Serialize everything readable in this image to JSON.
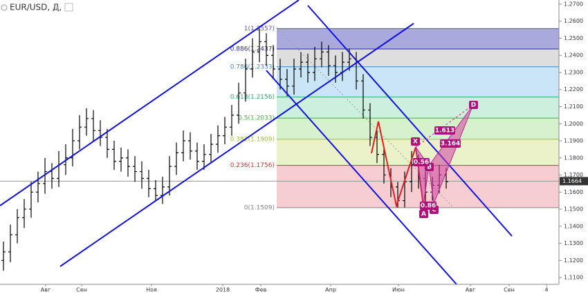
{
  "chart_data": {
    "type": "ohlc",
    "title": "EUR/USD, Д,",
    "x": [
      0,
      1,
      2,
      3,
      4,
      5,
      6,
      7,
      8,
      9,
      10,
      11,
      12,
      13,
      14,
      15,
      16,
      17,
      18,
      19,
      20,
      21,
      22,
      23,
      24,
      25,
      26,
      27,
      28,
      29,
      30,
      31,
      32,
      33,
      34,
      35,
      36,
      37,
      38,
      39,
      40,
      41,
      42,
      43,
      44,
      45,
      46,
      47,
      48,
      49,
      50,
      51,
      52,
      53,
      54,
      55,
      56,
      57,
      58,
      59,
      60,
      61,
      62,
      63,
      64
    ],
    "open": [
      1.12,
      1.125,
      1.135,
      1.145,
      1.15,
      1.16,
      1.165,
      1.172,
      1.168,
      1.176,
      1.18,
      1.19,
      1.198,
      1.203,
      1.196,
      1.192,
      1.185,
      1.178,
      1.18,
      1.175,
      1.172,
      1.168,
      1.162,
      1.158,
      1.163,
      1.175,
      1.183,
      1.19,
      1.184,
      1.178,
      1.182,
      1.188,
      1.193,
      1.198,
      1.205,
      1.218,
      1.232,
      1.242,
      1.248,
      1.24,
      1.232,
      1.226,
      1.222,
      1.232,
      1.236,
      1.23,
      1.238,
      1.242,
      1.234,
      1.23,
      1.236,
      1.238,
      1.225,
      1.208,
      1.192,
      1.182,
      1.17,
      1.163,
      1.155,
      1.166,
      1.176,
      1.168,
      1.16,
      1.164,
      1.17
    ],
    "high": [
      1.131,
      1.141,
      1.15,
      1.156,
      1.166,
      1.172,
      1.18,
      1.177,
      1.184,
      1.188,
      1.197,
      1.205,
      1.209,
      1.208,
      1.202,
      1.197,
      1.19,
      1.186,
      1.185,
      1.181,
      1.178,
      1.173,
      1.167,
      1.169,
      1.181,
      1.189,
      1.196,
      1.195,
      1.189,
      1.188,
      1.194,
      1.199,
      1.204,
      1.211,
      1.224,
      1.238,
      1.25,
      1.2557,
      1.253,
      1.246,
      1.238,
      1.232,
      1.238,
      1.242,
      1.241,
      1.245,
      1.248,
      1.246,
      1.24,
      1.242,
      1.244,
      1.242,
      1.229,
      1.212,
      1.196,
      1.186,
      1.174,
      1.166,
      1.172,
      1.184,
      1.182,
      1.172,
      1.169,
      1.176,
      1.174
    ],
    "low": [
      1.114,
      1.119,
      1.13,
      1.139,
      1.145,
      1.154,
      1.159,
      1.162,
      1.163,
      1.17,
      1.175,
      1.185,
      1.193,
      1.19,
      1.187,
      1.18,
      1.173,
      1.172,
      1.169,
      1.166,
      1.162,
      1.157,
      1.155,
      1.153,
      1.158,
      1.17,
      1.178,
      1.179,
      1.173,
      1.173,
      1.177,
      1.183,
      1.188,
      1.193,
      1.2,
      1.213,
      1.227,
      1.236,
      1.234,
      1.226,
      1.22,
      1.216,
      1.217,
      1.227,
      1.224,
      1.225,
      1.233,
      1.228,
      1.224,
      1.225,
      1.231,
      1.22,
      1.203,
      1.187,
      1.177,
      1.165,
      1.157,
      1.1509,
      1.151,
      1.16,
      1.162,
      1.153,
      1.155,
      1.159,
      1.162
    ],
    "close": [
      1.125,
      1.135,
      1.145,
      1.15,
      1.16,
      1.165,
      1.172,
      1.168,
      1.176,
      1.18,
      1.19,
      1.198,
      1.203,
      1.196,
      1.192,
      1.185,
      1.178,
      1.18,
      1.175,
      1.172,
      1.168,
      1.162,
      1.158,
      1.163,
      1.175,
      1.183,
      1.19,
      1.184,
      1.178,
      1.182,
      1.188,
      1.193,
      1.198,
      1.205,
      1.218,
      1.232,
      1.242,
      1.248,
      1.24,
      1.232,
      1.226,
      1.222,
      1.232,
      1.236,
      1.23,
      1.238,
      1.242,
      1.234,
      1.23,
      1.236,
      1.238,
      1.225,
      1.208,
      1.192,
      1.182,
      1.17,
      1.163,
      1.155,
      1.166,
      1.176,
      1.168,
      1.16,
      1.164,
      1.17,
      1.166
    ],
    "color": "#000000",
    "xlim": [
      -0.5,
      80.3
    ],
    "xticks": [
      {
        "value": 6.1,
        "label": "Авг"
      },
      {
        "value": 11.3,
        "label": "Сен"
      },
      {
        "value": 21.4,
        "label": "Ноя"
      },
      {
        "value": 31.7,
        "label": "2018"
      },
      {
        "value": 37.2,
        "label": "Фев"
      },
      {
        "value": 47.3,
        "label": "Апр"
      },
      {
        "value": 57.1,
        "label": "Июн"
      },
      {
        "value": 67.5,
        "label": "Авг"
      },
      {
        "value": 73.1,
        "label": "Сен"
      },
      {
        "value": 78.5,
        "label": "4"
      }
    ],
    "ylim": [
      1.106,
      1.2724
    ],
    "yticks": [
      {
        "value": 1.11,
        "label": "1.1100"
      },
      {
        "value": 1.12,
        "label": "1.1200"
      },
      {
        "value": 1.13,
        "label": "1.1300"
      },
      {
        "value": 1.14,
        "label": "1.1400"
      },
      {
        "value": 1.15,
        "label": "1.1500"
      },
      {
        "value": 1.16,
        "label": "1.1600"
      },
      {
        "value": 1.17,
        "label": "1.1700"
      },
      {
        "value": 1.18,
        "label": "1.1800"
      },
      {
        "value": 1.19,
        "label": "1.1900"
      },
      {
        "value": 1.2,
        "label": "1.2000"
      },
      {
        "value": 1.21,
        "label": "1.2100"
      },
      {
        "value": 1.22,
        "label": "1.2200"
      },
      {
        "value": 1.23,
        "label": "1.2300"
      },
      {
        "value": 1.24,
        "label": "1.2400"
      },
      {
        "value": 1.25,
        "label": "1.2500"
      },
      {
        "value": 1.26,
        "label": "1.2600"
      },
      {
        "value": 1.27,
        "label": "1.2700"
      }
    ],
    "last_price": 1.1664,
    "fib_levels": [
      {
        "value": 1.2557,
        "label": "1(1.2557)",
        "color": "#5555b0"
      },
      {
        "value": 1.2437,
        "label": "0.886(1.2437)",
        "color": "#2a2aa0"
      },
      {
        "value": 1.2333,
        "label": "0.786(1.2333)",
        "color": "#3a8ac8"
      },
      {
        "value": 1.2156,
        "label": "0.618(1.2156)",
        "color": "#2ea86a"
      },
      {
        "value": 1.2033,
        "label": "0.5(1.2033)",
        "color": "#44b040"
      },
      {
        "value": 1.1909,
        "label": "0.382(1.1909)",
        "color": "#9ac030"
      },
      {
        "value": 1.1756,
        "label": "0.236(1.1756)",
        "color": "#d03030"
      },
      {
        "value": 1.1509,
        "label": "0(1.1509)",
        "color": "#808080"
      }
    ],
    "band_colors": [
      "#9a9ad8",
      "#d8d8d8",
      "#bfe0f5",
      "#c4ecd8",
      "#d0efc4",
      "#e8f0c0",
      "#f5c4c8"
    ],
    "annotations": {
      "X": "X",
      "A": "A",
      "B": "B",
      "C": "C",
      "D": "D",
      "xab": "0.56",
      "acb": "0.86",
      "bcd": "1.613",
      "xad": "3.164"
    }
  }
}
